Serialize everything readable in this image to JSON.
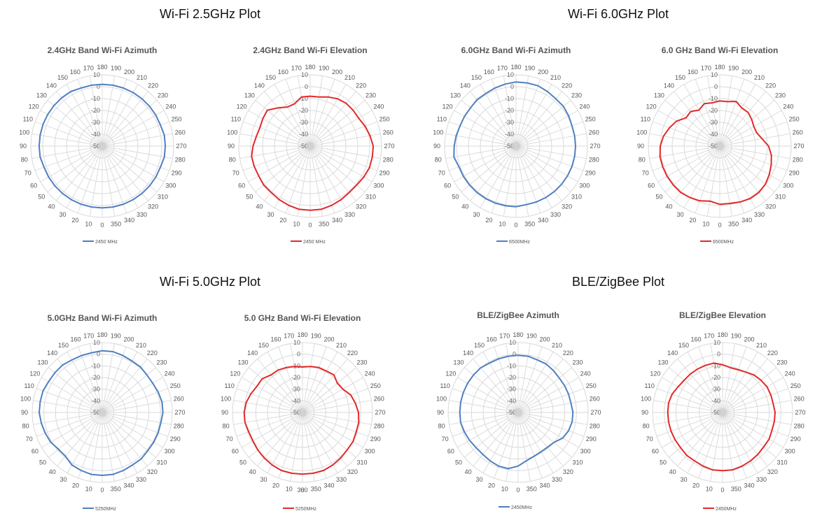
{
  "sections": [
    {
      "heading": "Wi-Fi 2.5GHz Plot"
    },
    {
      "heading": "Wi-Fi 6.0GHz Plot"
    },
    {
      "heading": "Wi-Fi 5.0GHz Plot"
    },
    {
      "heading": "BLE/ZigBee Plot"
    }
  ],
  "colors": {
    "azimuth": "#4f7fbf",
    "elevation": "#e32828",
    "grid": "#d9d9d9"
  },
  "chart_data": [
    {
      "type": "polar-line",
      "section": 0,
      "title": "2.4GHz Band Wi-Fi Azimuth",
      "legend": "2450 MHz",
      "color_key": "azimuth",
      "angle_ticks": [
        "0",
        "10",
        "20",
        "30",
        "40",
        "50",
        "60",
        "70",
        "80",
        "90",
        "100",
        "110",
        "120",
        "130",
        "140",
        "150",
        "160",
        "170",
        "180",
        "190",
        "200",
        "210",
        "220",
        "230",
        "240",
        "250",
        "260",
        "270",
        "280",
        "290",
        "300",
        "310",
        "320",
        "330",
        "340",
        "350"
      ],
      "radial_ticks": [
        "-50",
        "-40",
        "-30",
        "-20",
        "-10",
        "0",
        "10"
      ],
      "rlim": [
        -50,
        10
      ],
      "angles_deg": [
        0,
        10,
        20,
        30,
        40,
        50,
        60,
        70,
        80,
        90,
        100,
        110,
        120,
        130,
        140,
        150,
        160,
        170,
        180,
        190,
        200,
        210,
        220,
        230,
        240,
        250,
        260,
        270,
        280,
        290,
        300,
        310,
        320,
        330,
        340,
        350,
        360
      ],
      "values": [
        2,
        2,
        2,
        2,
        2,
        2,
        2,
        2,
        3,
        3,
        3,
        3,
        3,
        3,
        3,
        3,
        2,
        2,
        2,
        2,
        2,
        2,
        2,
        2,
        2,
        2,
        3,
        3,
        3,
        2,
        2,
        2,
        2,
        2,
        2,
        2,
        2
      ]
    },
    {
      "type": "polar-line",
      "section": 0,
      "title": "2.4GHz Band Wi-Fi Elevation",
      "legend": "2450 MHz",
      "color_key": "elevation",
      "angle_ticks": [
        "0",
        "10",
        "20",
        "30",
        "40",
        "50",
        "60",
        "70",
        "80",
        "90",
        "100",
        "110",
        "120",
        "130",
        "140",
        "150",
        "160",
        "170",
        "180",
        "190",
        "200",
        "210",
        "220",
        "230",
        "240",
        "250",
        "260",
        "270",
        "280",
        "290",
        "300",
        "310",
        "320",
        "330",
        "340",
        "350"
      ],
      "radial_ticks": [
        "-50",
        "-40",
        "-30",
        "-20",
        "-10",
        "0",
        "10"
      ],
      "rlim": [
        -50,
        10
      ],
      "angles_deg": [
        0,
        10,
        20,
        30,
        40,
        50,
        60,
        70,
        80,
        90,
        100,
        110,
        120,
        130,
        140,
        150,
        160,
        170,
        180,
        190,
        200,
        210,
        220,
        230,
        240,
        250,
        260,
        270,
        280,
        290,
        300,
        310,
        320,
        330,
        340,
        350,
        360
      ],
      "values": [
        4,
        4,
        3,
        2,
        1,
        1,
        0,
        0,
        0,
        -2,
        -4,
        -5,
        -4,
        -3,
        -8,
        -12,
        -12,
        -8,
        -8,
        -8,
        -6,
        -4,
        -3,
        -3,
        -3,
        -1,
        1,
        3,
        3,
        3,
        2,
        1,
        1,
        2,
        3,
        4,
        4
      ]
    },
    {
      "type": "polar-line",
      "section": 1,
      "title": "6.0GHz Band Wi-Fi Azimuth",
      "legend": "6500MHz",
      "color_key": "azimuth",
      "angle_ticks": [
        "0",
        "10",
        "20",
        "30",
        "40",
        "50",
        "60",
        "70",
        "80",
        "90",
        "100",
        "110",
        "120",
        "130",
        "140",
        "150",
        "160",
        "170",
        "180",
        "190",
        "200",
        "210",
        "220",
        "230",
        "240",
        "250",
        "260",
        "270",
        "280",
        "290",
        "300",
        "310",
        "320",
        "330",
        "340",
        "350"
      ],
      "radial_ticks": [
        "-50",
        "-40",
        "-30",
        "-20",
        "-10",
        "0",
        "10"
      ],
      "rlim": [
        -50,
        10
      ],
      "angles_deg": [
        0,
        10,
        20,
        30,
        40,
        50,
        60,
        70,
        80,
        90,
        100,
        110,
        120,
        130,
        140,
        150,
        160,
        170,
        180,
        190,
        200,
        210,
        220,
        230,
        240,
        250,
        260,
        270,
        280,
        290,
        300,
        310,
        320,
        330,
        340,
        350,
        360
      ],
      "values": [
        1,
        1,
        1,
        1,
        1,
        1,
        1,
        1,
        3,
        2,
        1,
        0,
        0,
        0,
        1,
        1,
        2,
        3,
        4,
        4,
        4,
        3,
        2,
        2,
        1,
        0,
        0,
        0,
        0,
        0,
        0,
        0,
        0,
        0,
        0,
        0,
        1
      ]
    },
    {
      "type": "polar-line",
      "section": 1,
      "title": "6.0 GHz Band Wi-Fi Elevation",
      "legend": "6500MHz",
      "color_key": "elevation",
      "angle_ticks": [
        "0",
        "10",
        "20",
        "30",
        "40",
        "50",
        "60",
        "70",
        "80",
        "90",
        "100",
        "110",
        "120",
        "130",
        "140",
        "150",
        "160",
        "170",
        "180",
        "190",
        "200",
        "210",
        "220",
        "230",
        "240",
        "250",
        "260",
        "270",
        "280",
        "290",
        "300",
        "310",
        "320",
        "330",
        "340",
        "350"
      ],
      "radial_ticks": [
        "-50",
        "-40",
        "-30",
        "-20",
        "-10",
        "0",
        "10"
      ],
      "rlim": [
        -50,
        10
      ],
      "angles_deg": [
        0,
        10,
        20,
        30,
        40,
        50,
        60,
        70,
        80,
        90,
        100,
        110,
        120,
        130,
        140,
        150,
        160,
        170,
        180,
        190,
        200,
        210,
        220,
        230,
        240,
        250,
        260,
        270,
        280,
        290,
        300,
        310,
        320,
        330,
        340,
        350,
        360
      ],
      "values": [
        -1,
        -3,
        -1,
        0,
        1,
        1,
        1,
        1,
        1,
        0,
        -2,
        -5,
        -8,
        -13,
        -12,
        -15,
        -12,
        -13,
        -12,
        -12,
        -10,
        -13,
        -13,
        -15,
        -17,
        -17,
        -14,
        -9,
        -6,
        -4,
        -2,
        0,
        1,
        1,
        0,
        -1,
        -1
      ]
    },
    {
      "type": "polar-line",
      "section": 2,
      "title": "5.0GHz Band Wi-Fi Azimuth",
      "legend": "5250MHz",
      "color_key": "azimuth",
      "angle_ticks": [
        "0",
        "10",
        "20",
        "30",
        "40",
        "50",
        "60",
        "70",
        "80",
        "90",
        "100",
        "110",
        "120",
        "130",
        "140",
        "150",
        "160",
        "170",
        "180",
        "190",
        "200",
        "210",
        "220",
        "230",
        "240",
        "250",
        "260",
        "270",
        "280",
        "290",
        "300",
        "310",
        "320",
        "330",
        "340",
        "350"
      ],
      "radial_ticks": [
        "-50",
        "-40",
        "-30",
        "-20",
        "-10",
        "0",
        "10"
      ],
      "rlim": [
        -50,
        10
      ],
      "angles_deg": [
        0,
        10,
        20,
        30,
        40,
        50,
        60,
        70,
        80,
        90,
        100,
        110,
        120,
        130,
        140,
        150,
        160,
        170,
        180,
        190,
        200,
        210,
        220,
        230,
        240,
        250,
        260,
        270,
        280,
        290,
        300,
        310,
        320,
        330,
        340,
        350,
        360
      ],
      "values": [
        4,
        4,
        3,
        2,
        -1,
        -1,
        1,
        2,
        3,
        4,
        4,
        4,
        3,
        3,
        3,
        2,
        2,
        2,
        3,
        3,
        2,
        1,
        1,
        0,
        0,
        1,
        2,
        2,
        1,
        1,
        1,
        1,
        2,
        2,
        3,
        4,
        4
      ]
    },
    {
      "type": "polar-line",
      "section": 2,
      "title": "5.0 GHz Band Wi-Fi Elevation",
      "legend": "5250MHz",
      "color_key": "elevation",
      "angle_ticks": [
        "0",
        "10",
        "20",
        "30",
        "40",
        "50",
        "60",
        "70",
        "80",
        "90",
        "100",
        "110",
        "120",
        "130",
        "140",
        "150",
        "160",
        "170",
        "180",
        "190",
        "200",
        "210",
        "220",
        "230",
        "240",
        "250",
        "260",
        "270",
        "280",
        "290",
        "300",
        "310",
        "320",
        "330",
        "340",
        "350",
        "360"
      ],
      "radial_ticks": [
        "-50",
        "-40",
        "-30",
        "-20",
        "-10",
        "0",
        "10"
      ],
      "rlim": [
        -50,
        10
      ],
      "angles_deg": [
        0,
        10,
        20,
        30,
        40,
        50,
        60,
        70,
        80,
        90,
        100,
        110,
        120,
        130,
        140,
        150,
        160,
        170,
        180,
        190,
        200,
        210,
        220,
        230,
        240,
        250,
        260,
        270,
        280,
        290,
        300,
        310,
        320,
        330,
        340,
        350,
        360
      ],
      "values": [
        3,
        3,
        3,
        2,
        1,
        0,
        -1,
        -1,
        0,
        0,
        -1,
        -3,
        -5,
        -5,
        -8,
        -8,
        -9,
        -10,
        -11,
        -10,
        -9,
        -9,
        -8,
        -11,
        -10,
        -6,
        -4,
        -2,
        -1,
        -1,
        0,
        0,
        1,
        2,
        3,
        3,
        3
      ]
    },
    {
      "type": "polar-line",
      "section": 3,
      "title": "BLE/ZigBee Azimuth",
      "legend": "2450MHz",
      "color_key": "azimuth",
      "angle_ticks": [
        "0",
        "10",
        "20",
        "30",
        "40",
        "50",
        "60",
        "70",
        "80",
        "90",
        "100",
        "110",
        "120",
        "130",
        "140",
        "150",
        "160",
        "170",
        "180",
        "190",
        "200",
        "210",
        "220",
        "230",
        "240",
        "250",
        "260",
        "270",
        "280",
        "290",
        "300",
        "310",
        "320",
        "330",
        "340",
        "350"
      ],
      "radial_ticks": [
        "-50",
        "-40",
        "-30",
        "-20",
        "-10",
        "0",
        "10"
      ],
      "rlim": [
        -50,
        10
      ],
      "angles_deg": [
        0,
        10,
        20,
        30,
        40,
        50,
        60,
        70,
        80,
        90,
        100,
        110,
        120,
        130,
        140,
        150,
        160,
        170,
        180,
        190,
        200,
        210,
        220,
        230,
        240,
        250,
        260,
        270,
        280,
        290,
        300,
        310,
        320,
        330,
        340,
        350,
        360
      ],
      "values": [
        -4,
        -1,
        -1,
        -2,
        -3,
        -3,
        -2,
        -1,
        0,
        0,
        0,
        0,
        0,
        0,
        0,
        -1,
        -1,
        -1,
        -1,
        -1,
        -2,
        -2,
        -3,
        -4,
        -4,
        -4,
        -4,
        -3,
        -3,
        -4,
        -6,
        -10,
        -11,
        -11,
        -10,
        -8,
        -4
      ]
    },
    {
      "type": "polar-line",
      "section": 3,
      "title": "BLE/ZigBee Elevation",
      "legend": "2450MHz",
      "color_key": "elevation",
      "angle_ticks": [
        "0",
        "10",
        "20",
        "30",
        "40",
        "50",
        "60",
        "70",
        "80",
        "90",
        "100",
        "110",
        "120",
        "130",
        "140",
        "150",
        "160",
        "170",
        "180",
        "190",
        "200",
        "210",
        "220",
        "230",
        "240",
        "250",
        "260",
        "270",
        "280",
        "290",
        "300",
        "310",
        "320",
        "330",
        "340",
        "350"
      ],
      "radial_ticks": [
        "-50",
        "-40",
        "-30",
        "-20",
        "-10",
        "0",
        "10"
      ],
      "rlim": [
        -50,
        10
      ],
      "angles_deg": [
        0,
        10,
        20,
        30,
        40,
        50,
        60,
        70,
        80,
        90,
        100,
        110,
        120,
        130,
        140,
        150,
        160,
        170,
        180,
        190,
        200,
        210,
        220,
        230,
        240,
        250,
        260,
        270,
        280,
        290,
        300,
        310,
        320,
        330,
        340,
        350,
        360
      ],
      "values": [
        0,
        0,
        -1,
        -2,
        -2,
        -3,
        -3,
        -3,
        -3,
        -3,
        -3,
        -4,
        -6,
        -7,
        -7,
        -7,
        -7,
        -7,
        -9,
        -11,
        -11,
        -10,
        -8,
        -7,
        -6,
        -6,
        -6,
        -5,
        -5,
        -5,
        -4,
        -4,
        -3,
        -2,
        -1,
        0,
        0
      ]
    }
  ]
}
